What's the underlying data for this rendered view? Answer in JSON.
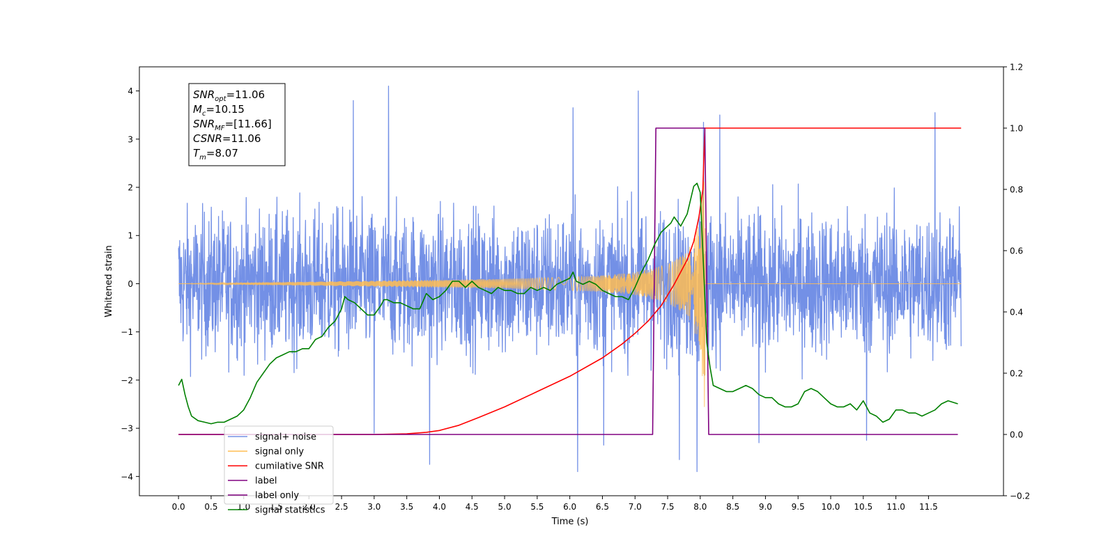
{
  "chart_data": {
    "type": "line",
    "xlabel": "Time (s)",
    "ylabel": "Whitened strain",
    "xlim": [
      -0.6,
      12.65
    ],
    "ylim": [
      -4.4,
      4.5
    ],
    "ylim_right": [
      -0.2,
      1.2
    ],
    "x_ticks": [
      0.0,
      0.5,
      1.0,
      1.5,
      2.0,
      2.5,
      3.0,
      3.5,
      4.0,
      4.5,
      5.0,
      5.5,
      6.0,
      6.5,
      7.0,
      7.5,
      8.0,
      8.5,
      9.0,
      9.5,
      10.0,
      10.5,
      11.0,
      11.5
    ],
    "x_tick_labels": [
      "0.0",
      "0.5",
      "1.0",
      "1.5",
      "2.0",
      "2.5",
      "3.0",
      "3.5",
      "4.0",
      "4.5",
      "5.0",
      "5.5",
      "6.0",
      "6.5",
      "7.0",
      "7.5",
      "8.0",
      "8.5",
      "9.0",
      "9.5",
      "10.0",
      "10.5",
      "11.0",
      "11.5"
    ],
    "y_ticks": [
      -4,
      -3,
      -2,
      -1,
      0,
      1,
      2,
      3,
      4
    ],
    "y_tick_labels": [
      "−4",
      "−3",
      "−2",
      "−1",
      "0",
      "1",
      "2",
      "3",
      "4"
    ],
    "y_ticks_right": [
      -0.2,
      0.0,
      0.2,
      0.4,
      0.6,
      0.8,
      1.0,
      1.2
    ],
    "y_tick_labels_right": [
      "−0.2",
      "0.0",
      "0.2",
      "0.4",
      "0.6",
      "0.8",
      "1.0",
      "1.2"
    ],
    "grid": false,
    "legend_placement": "lower-left",
    "annotation": {
      "lines": [
        {
          "sym": "SNR",
          "sub": "opt",
          "val": "=11.06"
        },
        {
          "sym": "M",
          "sub": "c",
          "val": "=10.15"
        },
        {
          "sym": "SNR",
          "sub": "MF",
          "val": "=[11.66]"
        },
        {
          "sym": "CSNR",
          "sub": "",
          "val": "=11.06"
        },
        {
          "sym": "T",
          "sub": "m",
          "val": "=8.07"
        }
      ]
    },
    "series": [
      {
        "name": "signal+ noise",
        "axis": "left",
        "color": "#7390e6",
        "kind": "noise_band",
        "x_range": [
          0.0,
          12.0
        ],
        "typical_amplitude": 1.0,
        "envelope_y": [
          -3.1,
          3.35
        ],
        "spikes": [
          {
            "x": 2.68,
            "y": 3.8
          },
          {
            "x": 3.22,
            "y": 4.1
          },
          {
            "x": 7.05,
            "y": 4.0
          },
          {
            "x": 6.05,
            "y": 3.65
          },
          {
            "x": 8.05,
            "y": 3.35
          },
          {
            "x": 8.3,
            "y": 3.5
          },
          {
            "x": 11.6,
            "y": 3.55
          },
          {
            "x": 3.85,
            "y": -3.75
          },
          {
            "x": 6.12,
            "y": -3.9
          },
          {
            "x": 7.95,
            "y": -3.9
          },
          {
            "x": 7.68,
            "y": -3.65
          },
          {
            "x": 6.52,
            "y": -3.35
          },
          {
            "x": 8.9,
            "y": -3.3
          },
          {
            "x": 10.55,
            "y": -3.25
          },
          {
            "x": 3.0,
            "y": -3.1
          }
        ]
      },
      {
        "name": "signal only",
        "axis": "left",
        "color": "#ffbd52",
        "kind": "chirp",
        "x_range": [
          0.0,
          12.0
        ],
        "merger_time": 8.07,
        "envelope": [
          {
            "x": 0.0,
            "y": 0.0
          },
          {
            "x": 4.0,
            "y": 0.08
          },
          {
            "x": 5.0,
            "y": 0.1
          },
          {
            "x": 6.0,
            "y": 0.14
          },
          {
            "x": 6.5,
            "y": 0.17
          },
          {
            "x": 7.0,
            "y": 0.24
          },
          {
            "x": 7.5,
            "y": 0.4
          },
          {
            "x": 7.8,
            "y": 0.65
          },
          {
            "x": 8.0,
            "y": 1.3
          },
          {
            "x": 8.07,
            "y": 2.9
          },
          {
            "x": 8.08,
            "y": 0.0
          },
          {
            "x": 12.0,
            "y": 0.0
          }
        ]
      },
      {
        "name": "cumilative SNR",
        "axis": "right",
        "color": "#ff0000",
        "x": [
          0.0,
          3.0,
          3.5,
          3.8,
          4.0,
          4.3,
          4.6,
          5.0,
          5.5,
          6.0,
          6.5,
          6.8,
          7.0,
          7.2,
          7.4,
          7.6,
          7.8,
          7.9,
          7.98,
          8.04,
          8.07,
          8.1,
          12.0
        ],
        "y": [
          0.0,
          0.0,
          0.002,
          0.007,
          0.013,
          0.03,
          0.055,
          0.09,
          0.14,
          0.19,
          0.25,
          0.295,
          0.33,
          0.37,
          0.42,
          0.49,
          0.57,
          0.63,
          0.71,
          0.8,
          1.0,
          1.0,
          1.0
        ]
      },
      {
        "name": "label",
        "axis": "right",
        "color": "#800080",
        "x": [
          0.0,
          7.27,
          7.32,
          8.07,
          8.13,
          11.95
        ],
        "y": [
          0.0,
          0.0,
          1.0,
          1.0,
          0.0,
          0.0
        ]
      },
      {
        "name": "label only",
        "axis": "right",
        "color": "#800080",
        "x": [],
        "y": []
      },
      {
        "name": "signal statistics",
        "axis": "right",
        "color": "#008000",
        "x": [
          0.0,
          0.05,
          0.1,
          0.15,
          0.2,
          0.3,
          0.4,
          0.5,
          0.6,
          0.7,
          0.8,
          0.9,
          1.0,
          1.1,
          1.2,
          1.3,
          1.4,
          1.5,
          1.6,
          1.7,
          1.8,
          1.9,
          2.0,
          2.1,
          2.2,
          2.3,
          2.4,
          2.5,
          2.55,
          2.6,
          2.7,
          2.8,
          2.9,
          3.0,
          3.1,
          3.15,
          3.2,
          3.3,
          3.4,
          3.5,
          3.6,
          3.7,
          3.8,
          3.9,
          4.0,
          4.1,
          4.2,
          4.3,
          4.4,
          4.5,
          4.6,
          4.7,
          4.8,
          4.9,
          5.0,
          5.1,
          5.2,
          5.3,
          5.4,
          5.5,
          5.6,
          5.7,
          5.8,
          5.9,
          6.0,
          6.05,
          6.1,
          6.2,
          6.3,
          6.4,
          6.5,
          6.6,
          6.7,
          6.8,
          6.9,
          7.0,
          7.1,
          7.2,
          7.3,
          7.4,
          7.5,
          7.55,
          7.6,
          7.7,
          7.8,
          7.9,
          7.95,
          8.0,
          8.05,
          8.1,
          8.15,
          8.2,
          8.3,
          8.4,
          8.5,
          8.6,
          8.7,
          8.8,
          8.9,
          9.0,
          9.1,
          9.2,
          9.3,
          9.4,
          9.5,
          9.6,
          9.7,
          9.8,
          9.9,
          10.0,
          10.1,
          10.2,
          10.3,
          10.4,
          10.5,
          10.6,
          10.7,
          10.8,
          10.9,
          11.0,
          11.1,
          11.2,
          11.3,
          11.4,
          11.5,
          11.6,
          11.7,
          11.8,
          11.95
        ],
        "y": [
          0.16,
          0.18,
          0.13,
          0.09,
          0.06,
          0.045,
          0.04,
          0.035,
          0.04,
          0.04,
          0.05,
          0.06,
          0.08,
          0.12,
          0.17,
          0.2,
          0.23,
          0.25,
          0.26,
          0.27,
          0.27,
          0.28,
          0.28,
          0.31,
          0.32,
          0.35,
          0.37,
          0.41,
          0.45,
          0.44,
          0.43,
          0.41,
          0.39,
          0.39,
          0.42,
          0.44,
          0.44,
          0.43,
          0.43,
          0.42,
          0.41,
          0.41,
          0.46,
          0.44,
          0.45,
          0.47,
          0.5,
          0.5,
          0.48,
          0.5,
          0.48,
          0.47,
          0.46,
          0.48,
          0.47,
          0.47,
          0.46,
          0.46,
          0.48,
          0.47,
          0.48,
          0.47,
          0.49,
          0.5,
          0.51,
          0.53,
          0.5,
          0.49,
          0.5,
          0.49,
          0.47,
          0.46,
          0.45,
          0.45,
          0.44,
          0.48,
          0.53,
          0.57,
          0.62,
          0.66,
          0.68,
          0.69,
          0.71,
          0.68,
          0.72,
          0.81,
          0.82,
          0.79,
          0.55,
          0.3,
          0.22,
          0.16,
          0.15,
          0.14,
          0.14,
          0.15,
          0.16,
          0.15,
          0.13,
          0.12,
          0.12,
          0.1,
          0.09,
          0.09,
          0.1,
          0.14,
          0.15,
          0.14,
          0.12,
          0.1,
          0.09,
          0.09,
          0.1,
          0.08,
          0.11,
          0.07,
          0.06,
          0.04,
          0.05,
          0.08,
          0.08,
          0.07,
          0.07,
          0.06,
          0.07,
          0.08,
          0.1,
          0.11,
          0.1
        ]
      }
    ]
  }
}
